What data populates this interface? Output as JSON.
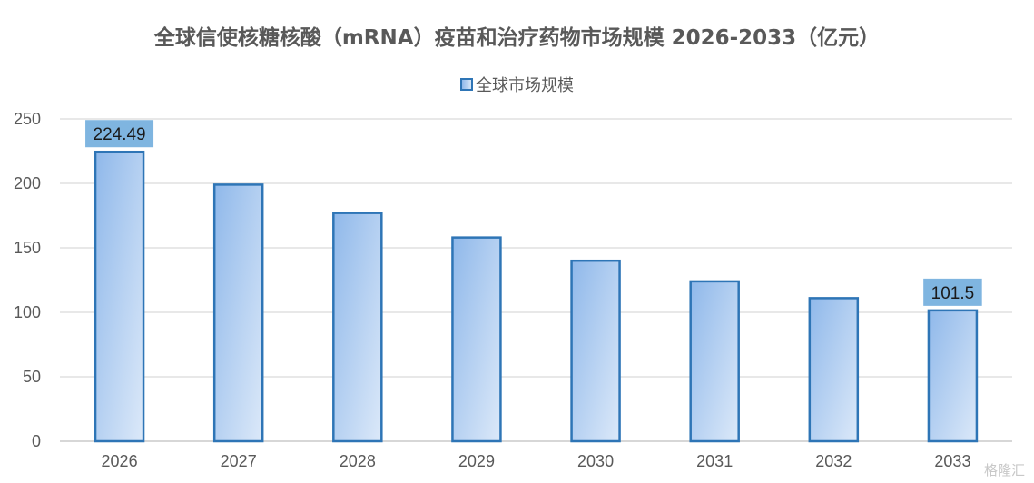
{
  "chart_data": {
    "type": "bar",
    "title": "全球信使核糖核酸（mRNA）疫苗和治疗药物市场规模 2026-2033（亿元）",
    "categories": [
      "2026",
      "2027",
      "2028",
      "2029",
      "2030",
      "2031",
      "2032",
      "2033"
    ],
    "series": [
      {
        "name": "全球市场规模",
        "values": [
          224.49,
          199,
          177,
          158,
          140,
          124,
          111,
          101.5
        ]
      }
    ],
    "data_labels": [
      "224.49",
      "",
      "",
      "",
      "",
      "",
      "",
      "101.5"
    ],
    "y_ticks": [
      "0",
      "50",
      "100",
      "150",
      "200",
      "250"
    ],
    "ylim": [
      0,
      250
    ],
    "xlabel": "",
    "ylabel": "",
    "grid": true,
    "legend_position": "top-center",
    "colors": {
      "bar_border": "#2e75b6",
      "bar_fill_start": "#8fb8ea",
      "bar_fill_end": "#dce9f9",
      "label_bg": "#7fb5e0",
      "grid": "#d9d9d9",
      "text": "#595959"
    }
  },
  "watermark": "格隆汇"
}
